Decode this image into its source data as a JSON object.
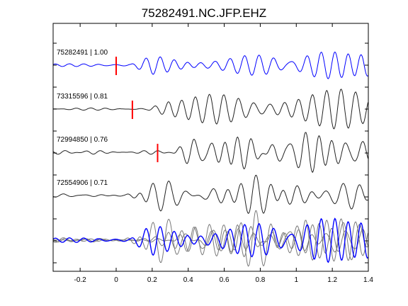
{
  "chart_data": {
    "type": "line",
    "title": "75282491.NC.JFP.EHZ",
    "xlabel": "",
    "ylabel": "",
    "xlim": [
      -0.35,
      1.4
    ],
    "x_ticks": [
      -0.2,
      0,
      0.2,
      0.4,
      0.6,
      0.8,
      1.0,
      1.2,
      1.4
    ],
    "x_tick_labels": [
      "-0.2",
      "0",
      "0.2",
      "0.4",
      "0.6",
      "0.8",
      "1",
      "1.2",
      "1.4"
    ],
    "colors": {
      "reference": "#0000ff",
      "trace": "#222222",
      "overlay": "#7a7a7a",
      "pick": "#ff0000"
    },
    "series": [
      {
        "name": "75282491 | 1.00",
        "event_id": "75282491",
        "correlation": "1.00",
        "pick_time": 0.0,
        "color": "#0000ff",
        "amplitude": 0.55,
        "waveform_seed": 1
      },
      {
        "name": "73315596 | 0.81",
        "event_id": "73315596",
        "correlation": "0.81",
        "pick_time": 0.09,
        "color": "#222222",
        "amplitude": 0.75,
        "waveform_seed": 2
      },
      {
        "name": "72994850 | 0.76",
        "event_id": "72994850",
        "correlation": "0.76",
        "pick_time": 0.23,
        "color": "#222222",
        "amplitude": 0.8,
        "waveform_seed": 3
      },
      {
        "name": "72554906 | 0.71",
        "event_id": "72554906",
        "correlation": "0.71",
        "pick_time": null,
        "color": "#222222",
        "amplitude": 0.55,
        "waveform_seed": 4
      }
    ],
    "stack": {
      "description": "overlay of all traces",
      "reference_color": "#0000ff",
      "others_color": "#7a7a7a"
    },
    "grid": false,
    "legend": "none"
  }
}
